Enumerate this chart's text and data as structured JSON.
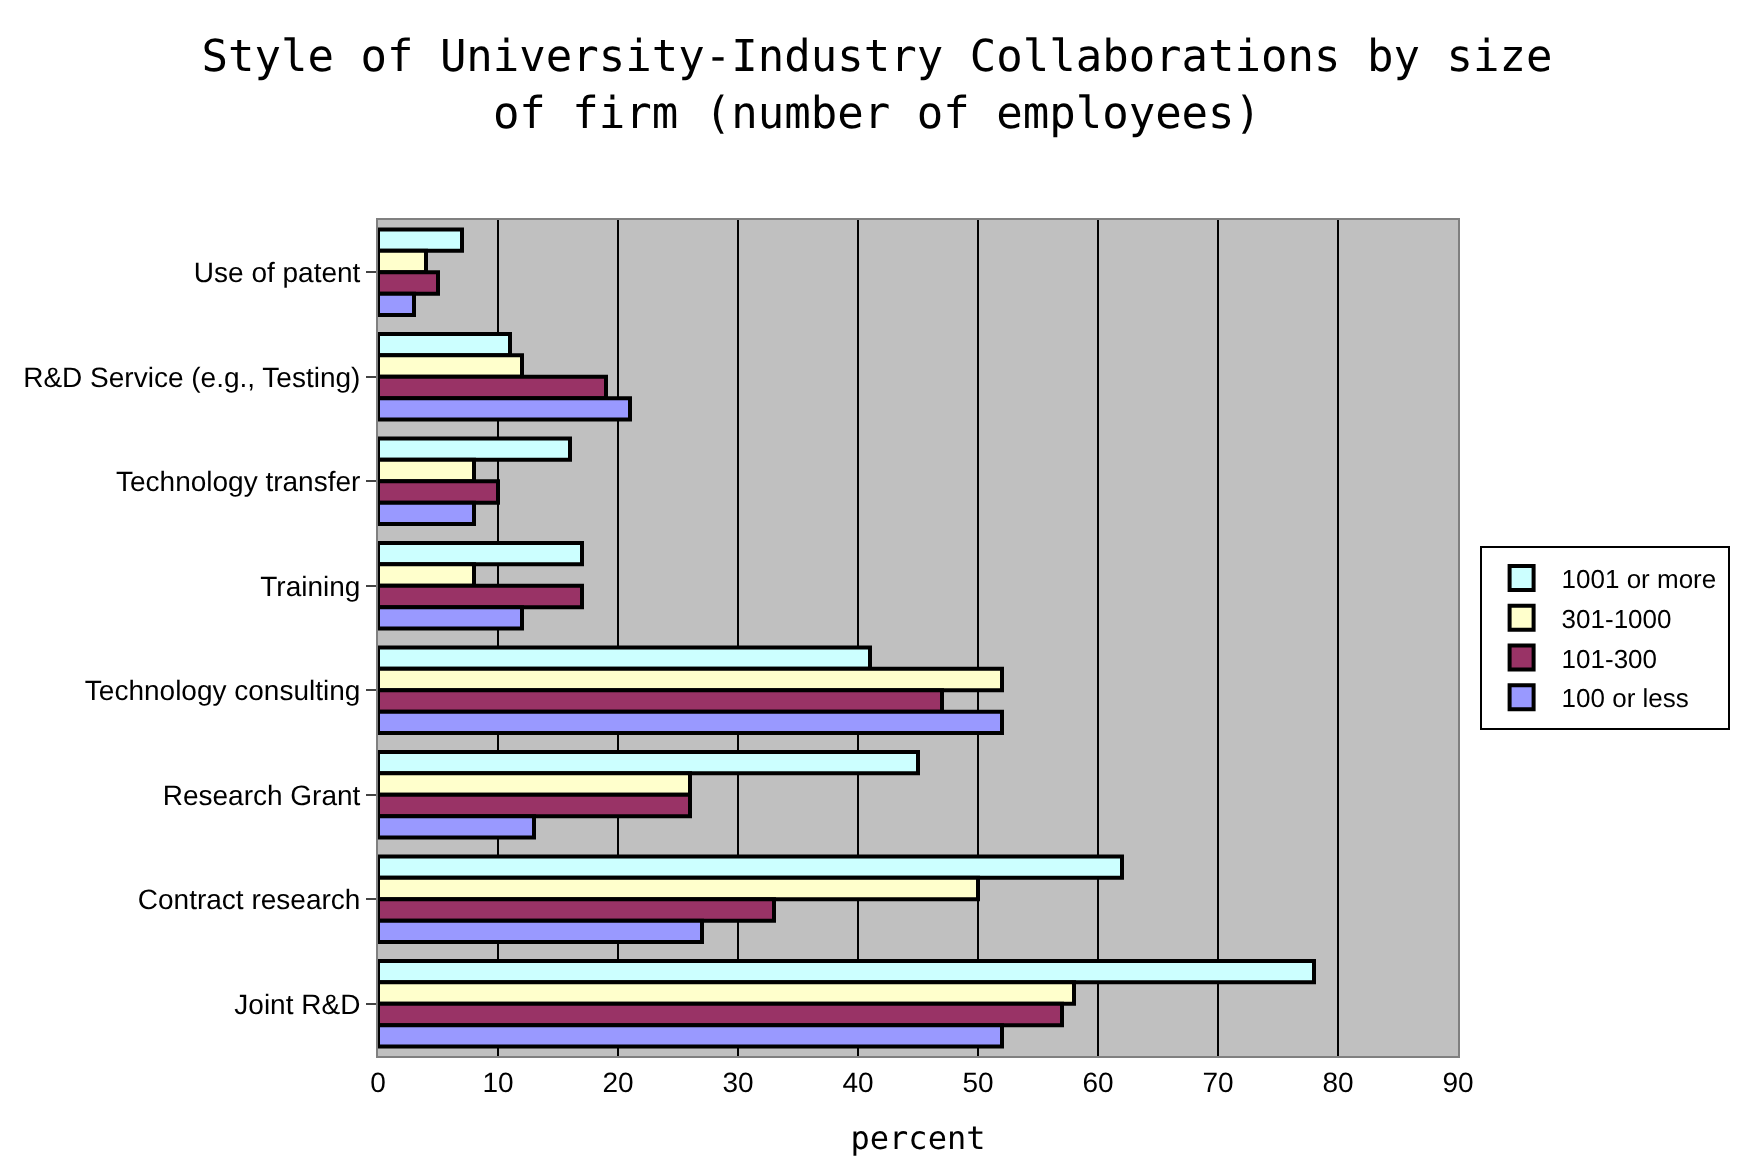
{
  "chart_data": {
    "type": "bar",
    "orientation": "horizontal",
    "title": "Style of University-Industry Collaborations by size\nof firm (number of employees)",
    "xlabel": "percent",
    "categories": [
      "Use of patent",
      "R&D Service (e.g., Testing)",
      "Technology transfer",
      "Training",
      "Technology consulting",
      "Research Grant",
      "Contract research",
      "Joint R&D"
    ],
    "series": [
      {
        "name": "1001 or more",
        "color": "#ccffff",
        "values": [
          7,
          11,
          16,
          17,
          41,
          45,
          62,
          78
        ]
      },
      {
        "name": "301-1000",
        "color": "#ffffcc",
        "values": [
          4,
          12,
          8,
          8,
          52,
          26,
          50,
          58
        ]
      },
      {
        "name": "101-300",
        "color": "#993366",
        "values": [
          5,
          19,
          10,
          17,
          47,
          26,
          33,
          57
        ]
      },
      {
        "name": "100 or less",
        "color": "#9999ff",
        "values": [
          3,
          21,
          8,
          12,
          52,
          13,
          27,
          52
        ]
      }
    ],
    "xlim": [
      0,
      90
    ],
    "xticks": [
      0,
      10,
      20,
      30,
      40,
      50,
      60,
      70,
      80,
      90
    ],
    "grid": "x",
    "legend": "right"
  }
}
